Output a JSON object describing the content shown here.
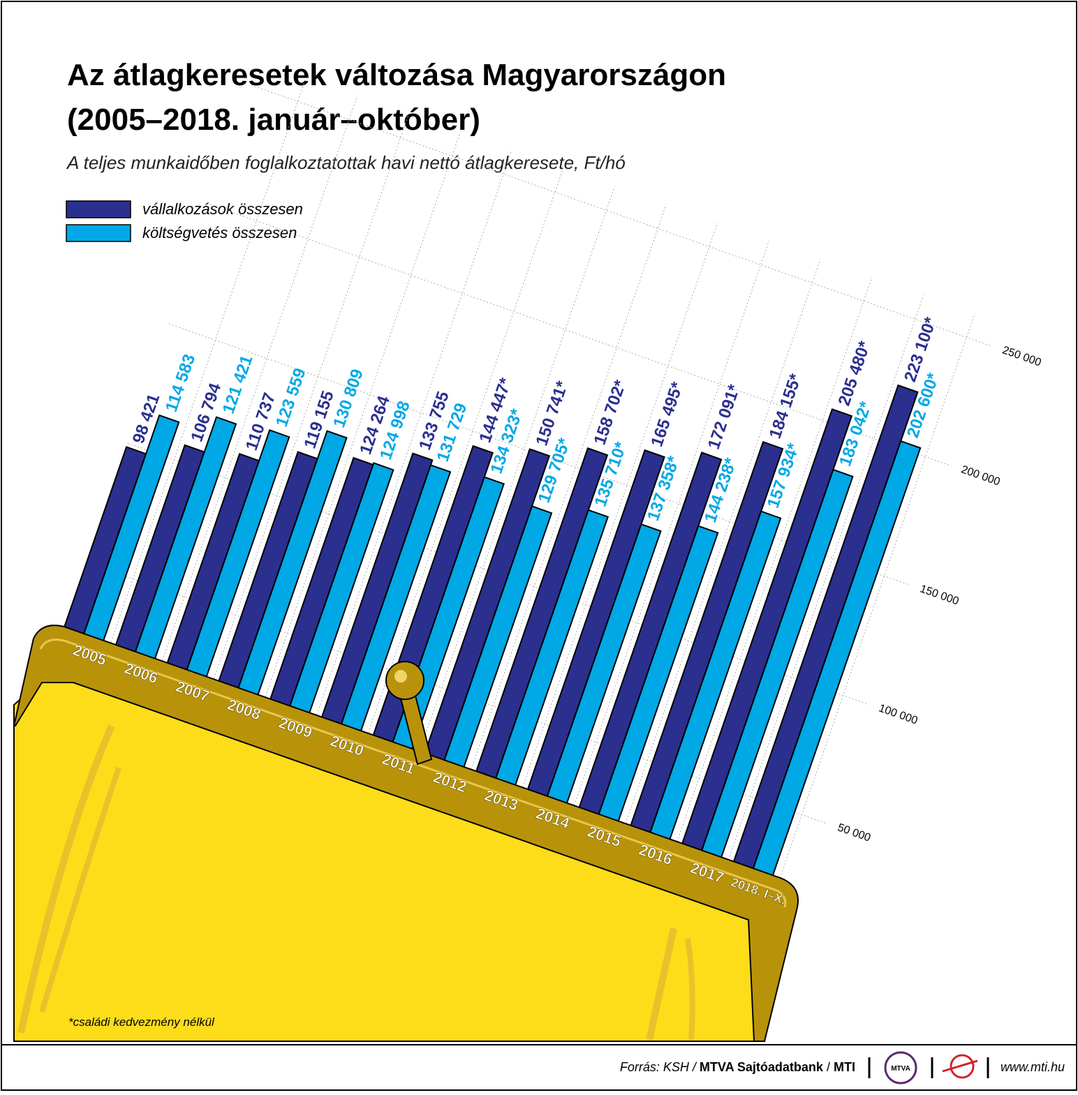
{
  "chart_data": {
    "type": "bar",
    "title": [
      "Az átlagkeresetek változása Magyarországon",
      "(2005–2018. január–október)"
    ],
    "subtitle": "A teljes munkaidőben foglalkoztatottak havi nettó átlagkeresete, Ft/hó",
    "categories": [
      "2005",
      "2006",
      "2007",
      "2008",
      "2009",
      "2010",
      "2011",
      "2012",
      "2013",
      "2014",
      "2015",
      "2016",
      "2017",
      "2018. I–X."
    ],
    "series": [
      {
        "name": "vállalkozások összesen",
        "color": "#2b2f8e",
        "values": [
          98421,
          106794,
          110737,
          119155,
          124264,
          133755,
          144447,
          150741,
          158702,
          165495,
          172091,
          184155,
          205480,
          223100
        ],
        "value_labels": [
          "98 421",
          "106 794",
          "110 737",
          "119 155",
          "124 264",
          "133 755",
          "144 447*",
          "150 741*",
          "158 702*",
          "165 495*",
          "172 091*",
          "184 155*",
          "205 480*",
          "223 100*"
        ]
      },
      {
        "name": "költségvetés összesen",
        "color": "#00a8e6",
        "values": [
          114583,
          121421,
          123559,
          130809,
          124998,
          131729,
          134323,
          129705,
          135710,
          137358,
          144238,
          157934,
          183042,
          202600
        ],
        "value_labels": [
          "114 583",
          "121 421",
          "123 559",
          "130 809",
          "124 998",
          "131 729",
          "134 323*",
          "129 705*",
          "135 710*",
          "137 358*",
          "144 238*",
          "157 934*",
          "183 042*",
          "202 600*"
        ]
      }
    ],
    "ylim": [
      0,
      250000
    ],
    "yticks": [
      {
        "value": 50000,
        "label": "50 000"
      },
      {
        "value": 100000,
        "label": "100 000"
      },
      {
        "value": 150000,
        "label": "150 000"
      },
      {
        "value": 200000,
        "label": "200 000"
      },
      {
        "value": 250000,
        "label": "250 000"
      }
    ],
    "grid": true,
    "footnote": "*családi kedvezmény nélkül",
    "source": [
      "Forrás: KSH /",
      "MTVA Sajtóadatbank",
      "/",
      "MTI"
    ],
    "logo": "MTVA",
    "website": "www.mti.hu"
  }
}
